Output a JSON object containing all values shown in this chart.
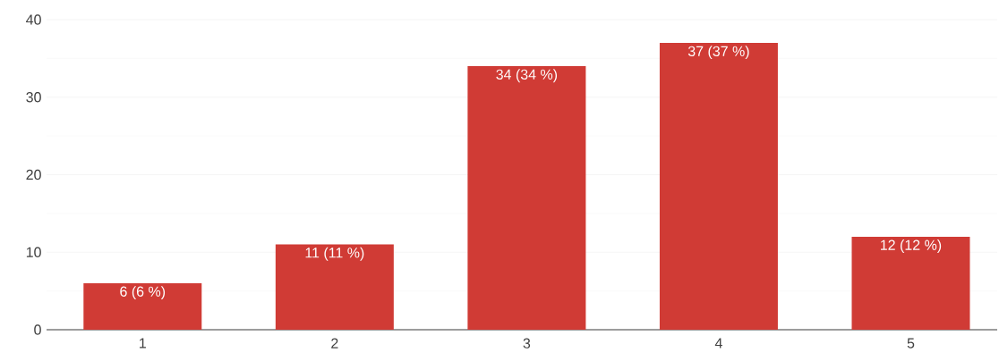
{
  "chart_data": {
    "type": "bar",
    "categories": [
      "1",
      "2",
      "3",
      "4",
      "5"
    ],
    "values": [
      6,
      11,
      34,
      37,
      12
    ],
    "value_labels": [
      "6 (6 %)",
      "11 (11 %)",
      "34 (34 %)",
      "37 (37 %)",
      "12 (12 %)"
    ],
    "color": "#d03b35",
    "ylim": [
      0,
      40
    ],
    "yticks": [
      0,
      10,
      20,
      30,
      40
    ],
    "grid": "y"
  }
}
